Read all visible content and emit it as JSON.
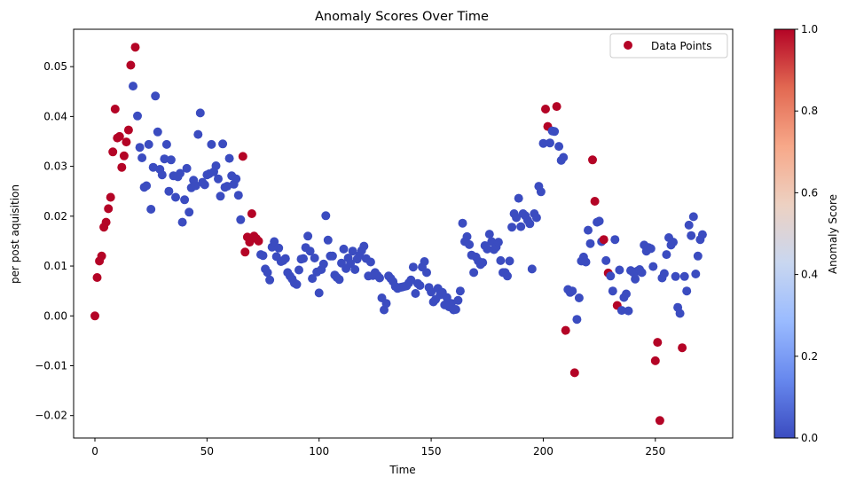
{
  "chart_data": {
    "type": "scatter",
    "title": "Anomaly Scores Over Time",
    "xlabel": "Time",
    "ylabel": "per post aquisition",
    "xlim": [
      -9.5,
      284.5
    ],
    "ylim": [
      -0.0245,
      0.0575
    ],
    "x_ticks": [
      0,
      50,
      100,
      150,
      200,
      250
    ],
    "x_tick_labels": [
      "0",
      "50",
      "100",
      "150",
      "200",
      "250"
    ],
    "y_ticks": [
      -0.02,
      -0.01,
      0.0,
      0.01,
      0.02,
      0.03,
      0.04,
      0.05
    ],
    "y_tick_labels": [
      "−0.02",
      "−0.01",
      "0.00",
      "0.01",
      "0.02",
      "0.03",
      "0.04",
      "0.05"
    ],
    "legend": {
      "label": "Data Points",
      "position": "upper-right",
      "color": "#b40426"
    },
    "colorbar": {
      "label": "Anomaly Score",
      "colormap": "coolwarm",
      "range": [
        0,
        1
      ],
      "ticks": [
        0.0,
        0.2,
        0.4,
        0.6,
        0.8,
        1.0
      ],
      "tick_labels": [
        "0.0",
        "0.2",
        "0.4",
        "0.6",
        "0.8",
        "1.0"
      ],
      "stops": [
        "#3b4cc0",
        "#6788ee",
        "#9abbff",
        "#c9d7f0",
        "#edd1c2",
        "#f7a889",
        "#e26952",
        "#b40426"
      ]
    },
    "colors": {
      "normal": "#3b4cc0",
      "anomaly": "#b40426"
    },
    "grid": false,
    "points": [
      [
        0,
        0.0,
        1
      ],
      [
        1,
        0.0077,
        1
      ],
      [
        2,
        0.011,
        1
      ],
      [
        3,
        0.012,
        1
      ],
      [
        4,
        0.0178,
        1
      ],
      [
        5,
        0.0188,
        1
      ],
      [
        6,
        0.0215,
        1
      ],
      [
        7,
        0.0238,
        1
      ],
      [
        8,
        0.0329,
        1
      ],
      [
        9,
        0.0415,
        1
      ],
      [
        10,
        0.0357,
        1
      ],
      [
        11,
        0.036,
        1
      ],
      [
        12,
        0.0298,
        1
      ],
      [
        13,
        0.0321,
        1
      ],
      [
        14,
        0.0349,
        1
      ],
      [
        15,
        0.0373,
        1
      ],
      [
        16,
        0.0503,
        1
      ],
      [
        17,
        0.0461,
        0
      ],
      [
        18,
        0.0539,
        1
      ],
      [
        19,
        0.0401,
        0
      ],
      [
        20,
        0.0338,
        0
      ],
      [
        21,
        0.0317,
        0
      ],
      [
        22,
        0.0258,
        0
      ],
      [
        23,
        0.0261,
        0
      ],
      [
        24,
        0.0344,
        0
      ],
      [
        25,
        0.0214,
        0
      ],
      [
        26,
        0.0298,
        0
      ],
      [
        27,
        0.0441,
        0
      ],
      [
        28,
        0.0369,
        0
      ],
      [
        29,
        0.0294,
        0
      ],
      [
        30,
        0.0283,
        0
      ],
      [
        31,
        0.0315,
        0
      ],
      [
        32,
        0.0344,
        0
      ],
      [
        33,
        0.025,
        0
      ],
      [
        34,
        0.0313,
        0
      ],
      [
        35,
        0.0281,
        0
      ],
      [
        36,
        0.0238,
        0
      ],
      [
        37,
        0.0279,
        0
      ],
      [
        38,
        0.0286,
        0
      ],
      [
        39,
        0.0188,
        0
      ],
      [
        40,
        0.0233,
        0
      ],
      [
        41,
        0.0296,
        0
      ],
      [
        42,
        0.0208,
        0
      ],
      [
        43,
        0.0257,
        0
      ],
      [
        44,
        0.0272,
        0
      ],
      [
        45,
        0.0261,
        0
      ],
      [
        46,
        0.0364,
        0
      ],
      [
        47,
        0.0407,
        0
      ],
      [
        48,
        0.0268,
        0
      ],
      [
        49,
        0.0263,
        0
      ],
      [
        50,
        0.0283,
        0
      ],
      [
        51,
        0.0285,
        0
      ],
      [
        52,
        0.0344,
        0
      ],
      [
        53,
        0.0289,
        0
      ],
      [
        54,
        0.0301,
        0
      ],
      [
        55,
        0.0275,
        0
      ],
      [
        56,
        0.024,
        0
      ],
      [
        57,
        0.0345,
        0
      ],
      [
        58,
        0.0258,
        0
      ],
      [
        59,
        0.026,
        0
      ],
      [
        60,
        0.0316,
        0
      ],
      [
        61,
        0.0281,
        0
      ],
      [
        62,
        0.0264,
        0
      ],
      [
        63,
        0.0275,
        0
      ],
      [
        64,
        0.0242,
        0
      ],
      [
        65,
        0.0193,
        0
      ],
      [
        66,
        0.032,
        1
      ],
      [
        67,
        0.0128,
        1
      ],
      [
        68,
        0.0158,
        1
      ],
      [
        69,
        0.0148,
        1
      ],
      [
        70,
        0.0205,
        1
      ],
      [
        71,
        0.016,
        1
      ],
      [
        72,
        0.0155,
        1
      ],
      [
        73,
        0.015,
        1
      ],
      [
        74,
        0.0123,
        0
      ],
      [
        75,
        0.0121,
        0
      ],
      [
        76,
        0.0094,
        0
      ],
      [
        77,
        0.0087,
        0
      ],
      [
        78,
        0.0072,
        0
      ],
      [
        79,
        0.0138,
        0
      ],
      [
        80,
        0.0149,
        0
      ],
      [
        81,
        0.0119,
        0
      ],
      [
        82,
        0.0136,
        0
      ],
      [
        83,
        0.0109,
        0
      ],
      [
        84,
        0.0111,
        0
      ],
      [
        85,
        0.0115,
        0
      ],
      [
        86,
        0.0087,
        0
      ],
      [
        87,
        0.008,
        0
      ],
      [
        88,
        0.0074,
        0
      ],
      [
        89,
        0.0066,
        0
      ],
      [
        90,
        0.0063,
        0
      ],
      [
        91,
        0.0092,
        0
      ],
      [
        92,
        0.0114,
        0
      ],
      [
        93,
        0.0115,
        0
      ],
      [
        94,
        0.0137,
        0
      ],
      [
        95,
        0.016,
        0
      ],
      [
        96,
        0.013,
        0
      ],
      [
        97,
        0.0075,
        0
      ],
      [
        98,
        0.0116,
        0
      ],
      [
        99,
        0.0088,
        0
      ],
      [
        100,
        0.0046,
        0
      ],
      [
        101,
        0.0093,
        0
      ],
      [
        102,
        0.0104,
        0
      ],
      [
        103,
        0.0201,
        0
      ],
      [
        104,
        0.0152,
        0
      ],
      [
        105,
        0.012,
        0
      ],
      [
        106,
        0.012,
        0
      ],
      [
        107,
        0.0082,
        0
      ],
      [
        108,
        0.0077,
        0
      ],
      [
        109,
        0.0073,
        0
      ],
      [
        110,
        0.0106,
        0
      ],
      [
        111,
        0.0134,
        0
      ],
      [
        112,
        0.0095,
        0
      ],
      [
        113,
        0.0116,
        0
      ],
      [
        114,
        0.0105,
        0
      ],
      [
        115,
        0.013,
        0
      ],
      [
        116,
        0.0093,
        0
      ],
      [
        117,
        0.0114,
        0
      ],
      [
        118,
        0.0121,
        0
      ],
      [
        119,
        0.0131,
        0
      ],
      [
        120,
        0.014,
        0
      ],
      [
        121,
        0.0115,
        0
      ],
      [
        122,
        0.008,
        0
      ],
      [
        123,
        0.0108,
        0
      ],
      [
        124,
        0.0081,
        0
      ],
      [
        125,
        0.0087,
        0
      ],
      [
        126,
        0.0081,
        0
      ],
      [
        127,
        0.0076,
        0
      ],
      [
        128,
        0.0036,
        0
      ],
      [
        129,
        0.0012,
        0
      ],
      [
        130,
        0.0025,
        0
      ],
      [
        131,
        0.008,
        0
      ],
      [
        132,
        0.0075,
        0
      ],
      [
        133,
        0.0069,
        0
      ],
      [
        134,
        0.0059,
        0
      ],
      [
        135,
        0.0055,
        0
      ],
      [
        136,
        0.0057,
        0
      ],
      [
        137,
        0.0058,
        0
      ],
      [
        138,
        0.0059,
        0
      ],
      [
        139,
        0.006,
        0
      ],
      [
        140,
        0.0066,
        0
      ],
      [
        141,
        0.0072,
        0
      ],
      [
        142,
        0.0098,
        0
      ],
      [
        143,
        0.0045,
        0
      ],
      [
        144,
        0.0065,
        0
      ],
      [
        145,
        0.0061,
        0
      ],
      [
        146,
        0.0098,
        0
      ],
      [
        147,
        0.0109,
        0
      ],
      [
        148,
        0.0087,
        0
      ],
      [
        149,
        0.0057,
        0
      ],
      [
        150,
        0.0048,
        0
      ],
      [
        151,
        0.0028,
        0
      ],
      [
        152,
        0.0033,
        0
      ],
      [
        153,
        0.0055,
        0
      ],
      [
        154,
        0.0042,
        0
      ],
      [
        155,
        0.0047,
        0
      ],
      [
        156,
        0.0022,
        0
      ],
      [
        157,
        0.0037,
        0
      ],
      [
        158,
        0.0018,
        0
      ],
      [
        159,
        0.0025,
        0
      ],
      [
        160,
        0.0012,
        0
      ],
      [
        161,
        0.0013,
        0
      ],
      [
        162,
        0.0031,
        0
      ],
      [
        163,
        0.005,
        0
      ],
      [
        164,
        0.0186,
        0
      ],
      [
        165,
        0.0149,
        0
      ],
      [
        166,
        0.0159,
        0
      ],
      [
        167,
        0.0143,
        0
      ],
      [
        168,
        0.0122,
        0
      ],
      [
        169,
        0.0087,
        0
      ],
      [
        170,
        0.0118,
        0
      ],
      [
        171,
        0.011,
        0
      ],
      [
        172,
        0.0103,
        0
      ],
      [
        173,
        0.0107,
        0
      ],
      [
        174,
        0.0141,
        0
      ],
      [
        175,
        0.0134,
        0
      ],
      [
        176,
        0.0164,
        0
      ],
      [
        177,
        0.0149,
        0
      ],
      [
        178,
        0.0133,
        0
      ],
      [
        179,
        0.0138,
        0
      ],
      [
        180,
        0.0148,
        0
      ],
      [
        181,
        0.0111,
        0
      ],
      [
        182,
        0.0087,
        0
      ],
      [
        183,
        0.0087,
        0
      ],
      [
        184,
        0.008,
        0
      ],
      [
        185,
        0.011,
        0
      ],
      [
        186,
        0.0178,
        0
      ],
      [
        187,
        0.0205,
        0
      ],
      [
        188,
        0.0197,
        0
      ],
      [
        189,
        0.0236,
        0
      ],
      [
        190,
        0.0179,
        0
      ],
      [
        191,
        0.0205,
        0
      ],
      [
        192,
        0.0201,
        0
      ],
      [
        193,
        0.0192,
        0
      ],
      [
        194,
        0.0185,
        0
      ],
      [
        195,
        0.0094,
        0
      ],
      [
        196,
        0.0205,
        0
      ],
      [
        197,
        0.0197,
        0
      ],
      [
        198,
        0.026,
        0
      ],
      [
        199,
        0.0249,
        0
      ],
      [
        200,
        0.0346,
        0
      ],
      [
        201,
        0.0415,
        1
      ],
      [
        202,
        0.038,
        1
      ],
      [
        203,
        0.0347,
        0
      ],
      [
        204,
        0.0371,
        0
      ],
      [
        205,
        0.037,
        0
      ],
      [
        206,
        0.042,
        1
      ],
      [
        207,
        0.034,
        0
      ],
      [
        208,
        0.0312,
        0
      ],
      [
        209,
        0.0318,
        0
      ],
      [
        210,
        -0.0029,
        1
      ],
      [
        211,
        0.0053,
        0
      ],
      [
        212,
        0.0047,
        0
      ],
      [
        213,
        0.005,
        0
      ],
      [
        214,
        -0.0114,
        1
      ],
      [
        215,
        -0.0007,
        0
      ],
      [
        216,
        0.0036,
        0
      ],
      [
        217,
        0.011,
        0
      ],
      [
        218,
        0.0118,
        0
      ],
      [
        219,
        0.0108,
        0
      ],
      [
        220,
        0.0172,
        0
      ],
      [
        221,
        0.0145,
        0
      ],
      [
        222,
        0.0313,
        1
      ],
      [
        223,
        0.023,
        1
      ],
      [
        224,
        0.0188,
        0
      ],
      [
        225,
        0.019,
        0
      ],
      [
        226,
        0.0149,
        0
      ],
      [
        227,
        0.0153,
        1
      ],
      [
        228,
        0.0111,
        0
      ],
      [
        229,
        0.0086,
        1
      ],
      [
        230,
        0.008,
        0
      ],
      [
        231,
        0.005,
        0
      ],
      [
        232,
        0.0153,
        0
      ],
      [
        233,
        0.0021,
        1
      ],
      [
        234,
        0.0092,
        0
      ],
      [
        235,
        0.0011,
        0
      ],
      [
        236,
        0.0037,
        0
      ],
      [
        237,
        0.0044,
        0
      ],
      [
        238,
        0.001,
        0
      ],
      [
        239,
        0.0091,
        0
      ],
      [
        240,
        0.0088,
        0
      ],
      [
        241,
        0.0074,
        0
      ],
      [
        242,
        0.009,
        0
      ],
      [
        243,
        0.0093,
        0
      ],
      [
        244,
        0.0087,
        0
      ],
      [
        245,
        0.0142,
        0
      ],
      [
        246,
        0.013,
        0
      ],
      [
        247,
        0.0137,
        0
      ],
      [
        248,
        0.0135,
        0
      ],
      [
        249,
        0.0099,
        0
      ],
      [
        250,
        -0.009,
        1
      ],
      [
        251,
        -0.0053,
        1
      ],
      [
        252,
        -0.021,
        1
      ],
      [
        253,
        0.0076,
        0
      ],
      [
        254,
        0.0085,
        0
      ],
      [
        255,
        0.0123,
        0
      ],
      [
        256,
        0.0157,
        0
      ],
      [
        257,
        0.0142,
        0
      ],
      [
        258,
        0.0148,
        0
      ],
      [
        259,
        0.0079,
        0
      ],
      [
        260,
        0.0017,
        0
      ],
      [
        261,
        0.0005,
        0
      ],
      [
        262,
        -0.0064,
        1
      ],
      [
        263,
        0.0079,
        0
      ],
      [
        264,
        0.005,
        0
      ],
      [
        265,
        0.0182,
        0
      ],
      [
        266,
        0.0161,
        0
      ],
      [
        267,
        0.0199,
        0
      ],
      [
        268,
        0.0084,
        0
      ],
      [
        269,
        0.012,
        0
      ],
      [
        270,
        0.0153,
        0
      ],
      [
        271,
        0.0163,
        0
      ]
    ]
  }
}
